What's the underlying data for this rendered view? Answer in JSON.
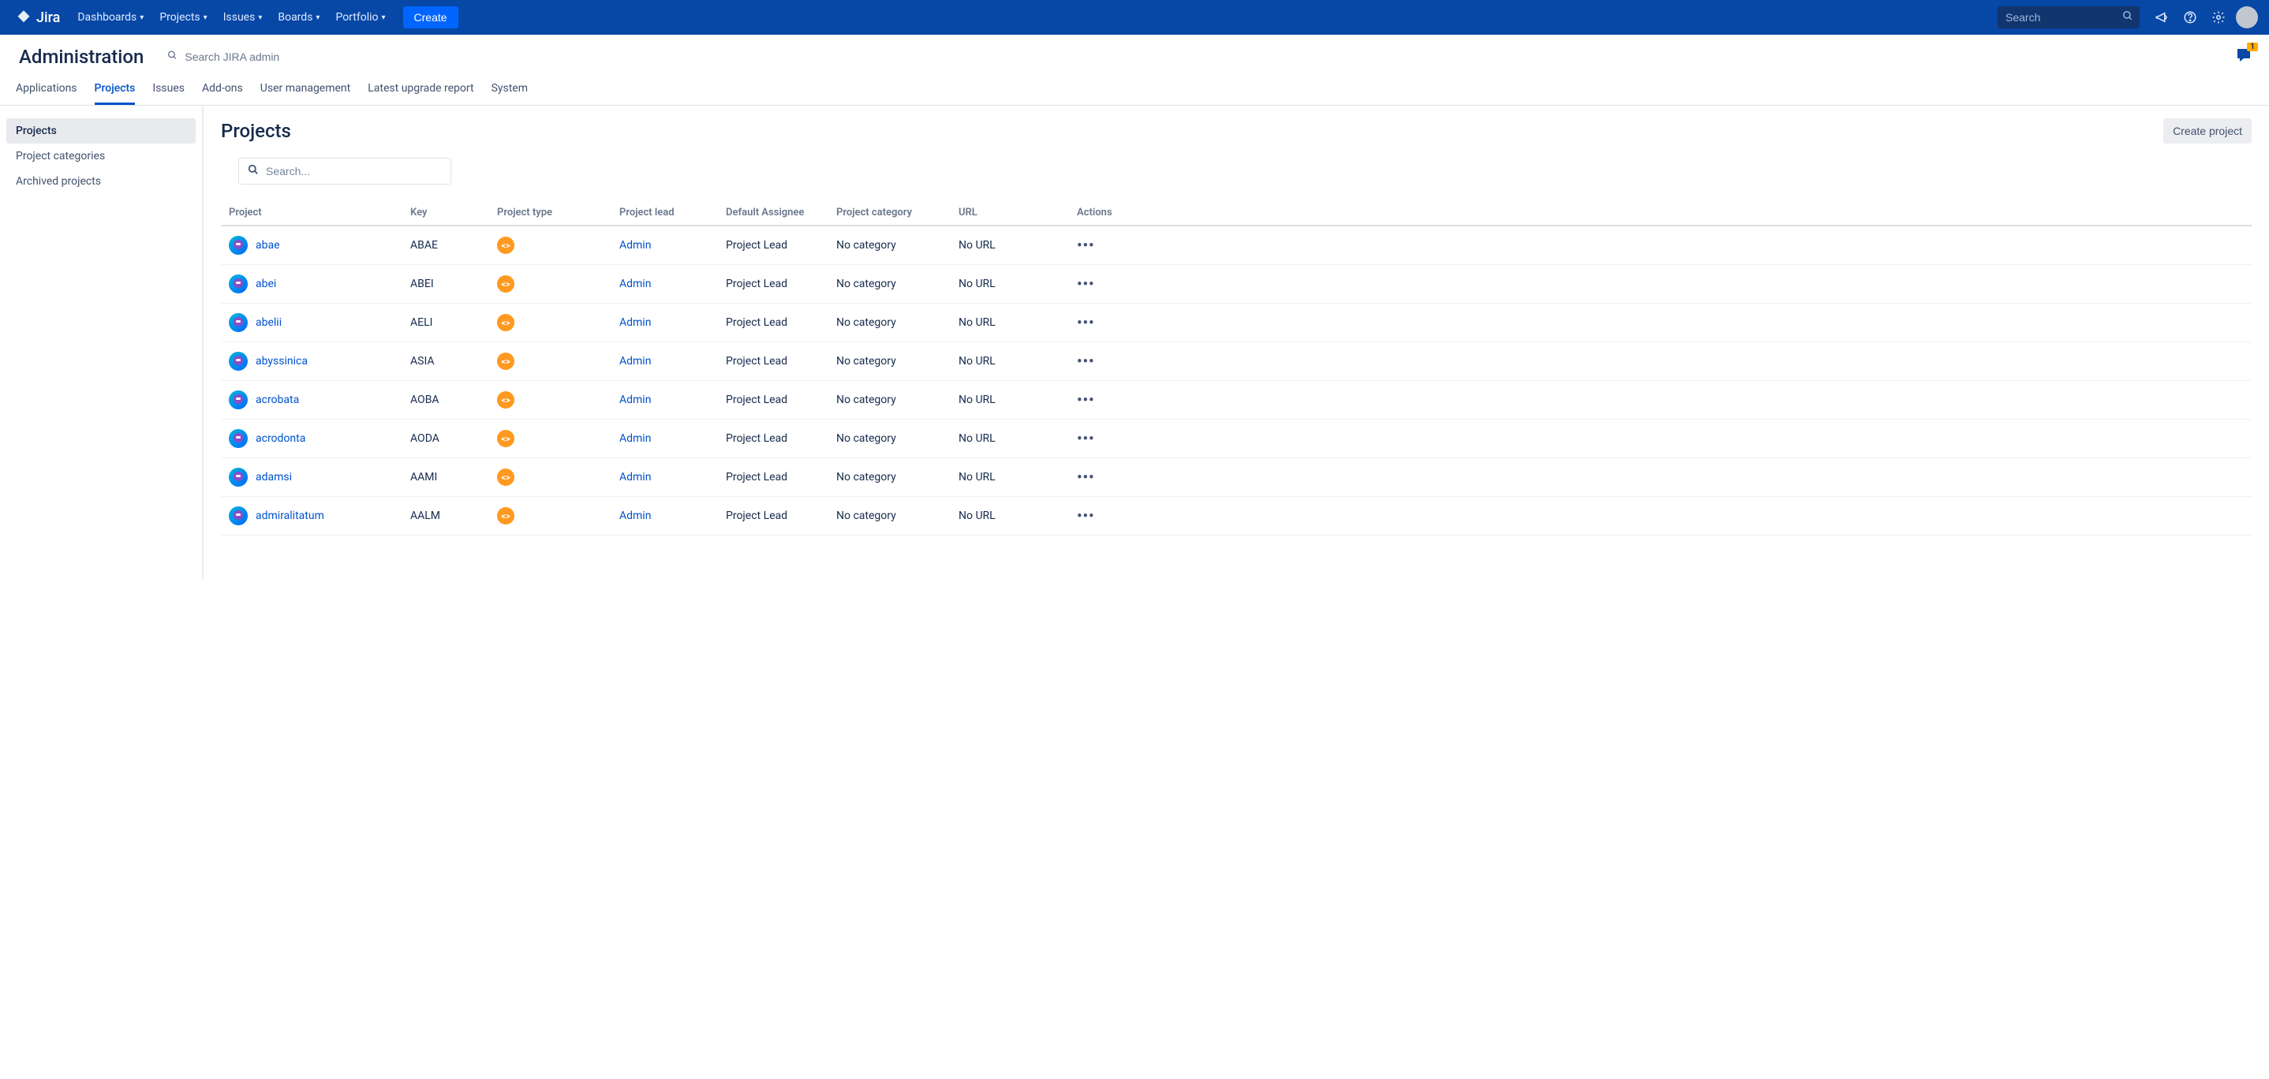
{
  "colors": {
    "navbar_bg": "#0747a6",
    "primary_blue": "#0052cc",
    "link_blue": "#0052cc",
    "create_btn": "#0065ff",
    "text_dark": "#172b4d",
    "text_muted": "#6b778c",
    "border": "#dfe1e6",
    "sidebar_active_bg": "#e9eaee",
    "ptype_orange": "#ff991f"
  },
  "topnav": {
    "logo_text": "Jira",
    "items": [
      {
        "label": "Dashboards"
      },
      {
        "label": "Projects"
      },
      {
        "label": "Issues"
      },
      {
        "label": "Boards"
      },
      {
        "label": "Portfolio"
      }
    ],
    "create_label": "Create",
    "search_placeholder": "Search"
  },
  "admin_header": {
    "title": "Administration",
    "search_placeholder": "Search JIRA admin",
    "feedback_badge": "1"
  },
  "admin_tabs": [
    {
      "label": "Applications",
      "active": false
    },
    {
      "label": "Projects",
      "active": true
    },
    {
      "label": "Issues",
      "active": false
    },
    {
      "label": "Add-ons",
      "active": false
    },
    {
      "label": "User management",
      "active": false
    },
    {
      "label": "Latest upgrade report",
      "active": false
    },
    {
      "label": "System",
      "active": false
    }
  ],
  "sidebar": {
    "items": [
      {
        "label": "Projects",
        "active": true
      },
      {
        "label": "Project categories",
        "active": false
      },
      {
        "label": "Archived projects",
        "active": false
      }
    ]
  },
  "content": {
    "title": "Projects",
    "create_project_label": "Create project",
    "filter_placeholder": "Search..."
  },
  "table": {
    "columns": [
      "Project",
      "Key",
      "Project type",
      "Project lead",
      "Default Assignee",
      "Project category",
      "URL",
      "Actions"
    ],
    "rows": [
      {
        "name": "abae",
        "key": "ABAE",
        "lead": "Admin",
        "assignee": "Project Lead",
        "category": "No category",
        "url": "No URL"
      },
      {
        "name": "abei",
        "key": "ABEI",
        "lead": "Admin",
        "assignee": "Project Lead",
        "category": "No category",
        "url": "No URL"
      },
      {
        "name": "abelii",
        "key": "AELI",
        "lead": "Admin",
        "assignee": "Project Lead",
        "category": "No category",
        "url": "No URL"
      },
      {
        "name": "abyssinica",
        "key": "ASIA",
        "lead": "Admin",
        "assignee": "Project Lead",
        "category": "No category",
        "url": "No URL"
      },
      {
        "name": "acrobata",
        "key": "AOBA",
        "lead": "Admin",
        "assignee": "Project Lead",
        "category": "No category",
        "url": "No URL"
      },
      {
        "name": "acrodonta",
        "key": "AODA",
        "lead": "Admin",
        "assignee": "Project Lead",
        "category": "No category",
        "url": "No URL"
      },
      {
        "name": "adamsi",
        "key": "AAMI",
        "lead": "Admin",
        "assignee": "Project Lead",
        "category": "No category",
        "url": "No URL"
      },
      {
        "name": "admiralitatum",
        "key": "AALM",
        "lead": "Admin",
        "assignee": "Project Lead",
        "category": "No category",
        "url": "No URL"
      }
    ]
  }
}
